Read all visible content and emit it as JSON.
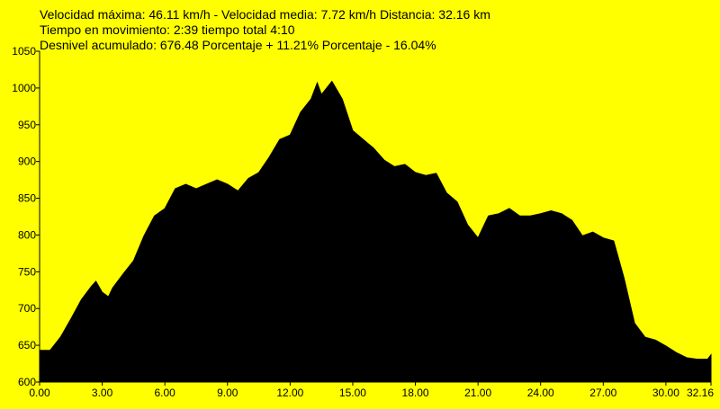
{
  "chart_data": {
    "type": "area",
    "title_lines": [
      "Velocidad máxima: 46.11 km/h - Velocidad media: 7.72 km/h Distancia: 32.16 km",
      "Tiempo en movimiento: 2:39 tiempo total  4:10",
      "Desnivel acumulado: 676.48 Porcentaje + 11.21% Porcentaje - 16.04%"
    ],
    "x": [
      0,
      0.5,
      1.0,
      1.5,
      2.0,
      2.5,
      2.7,
      3.0,
      3.3,
      3.5,
      4.0,
      4.5,
      5.0,
      5.5,
      6.0,
      6.5,
      7.0,
      7.5,
      8.0,
      8.5,
      9.0,
      9.5,
      10.0,
      10.5,
      11.0,
      11.5,
      12.0,
      12.5,
      13.0,
      13.3,
      13.5,
      14.0,
      14.5,
      15.0,
      15.5,
      16.0,
      16.5,
      17.0,
      17.5,
      18.0,
      18.5,
      19.0,
      19.5,
      20.0,
      20.5,
      21.0,
      21.5,
      22.0,
      22.5,
      23.0,
      23.5,
      24.0,
      24.5,
      25.0,
      25.5,
      26.0,
      26.5,
      27.0,
      27.5,
      28.0,
      28.5,
      29.0,
      29.5,
      30.0,
      30.5,
      31.0,
      31.5,
      32.0,
      32.16
    ],
    "values": [
      643,
      643,
      661,
      686,
      712,
      731,
      737,
      722,
      716,
      728,
      747,
      765,
      799,
      826,
      836,
      863,
      869,
      863,
      869,
      875,
      869,
      860,
      877,
      885,
      906,
      930,
      936,
      967,
      985,
      1007,
      991,
      1009,
      985,
      942,
      930,
      918,
      902,
      893,
      896,
      885,
      881,
      884,
      857,
      845,
      814,
      796,
      826,
      829,
      836,
      826,
      826,
      829,
      833,
      829,
      820,
      799,
      804,
      796,
      792,
      741,
      680,
      661,
      657,
      649,
      640,
      633,
      631,
      631,
      637
    ],
    "color": "#000000",
    "xlim": [
      0,
      32.16
    ],
    "xticks": [
      {
        "value": 0,
        "label": "0.00"
      },
      {
        "value": 3,
        "label": "3.00"
      },
      {
        "value": 6,
        "label": "6.00"
      },
      {
        "value": 9,
        "label": "9.00"
      },
      {
        "value": 12,
        "label": "12.00"
      },
      {
        "value": 15,
        "label": "15.00"
      },
      {
        "value": 18,
        "label": "18.00"
      },
      {
        "value": 21,
        "label": "21.00"
      },
      {
        "value": 24,
        "label": "24.00"
      },
      {
        "value": 27,
        "label": "27.00"
      },
      {
        "value": 30,
        "label": "30.00"
      },
      {
        "value": 32.16,
        "label": "32.16"
      }
    ],
    "ylim": [
      600,
      1050
    ],
    "yticks": [
      600,
      650,
      700,
      750,
      800,
      850,
      900,
      950,
      1000,
      1050
    ]
  }
}
